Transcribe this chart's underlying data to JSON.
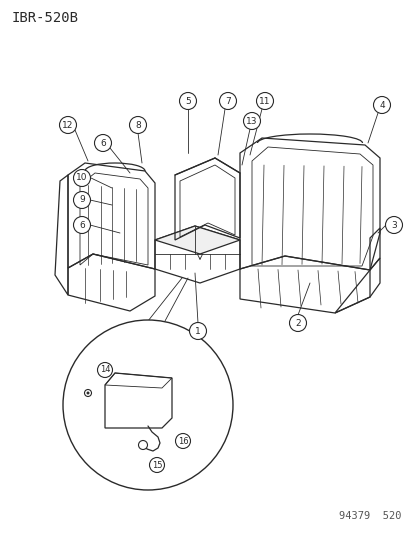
{
  "title_code": "IBR-520B",
  "footer_text": "94379  520",
  "bg": "#ffffff",
  "lc": "#2a2a2a",
  "fig_width": 4.14,
  "fig_height": 5.33,
  "dpi": 100
}
